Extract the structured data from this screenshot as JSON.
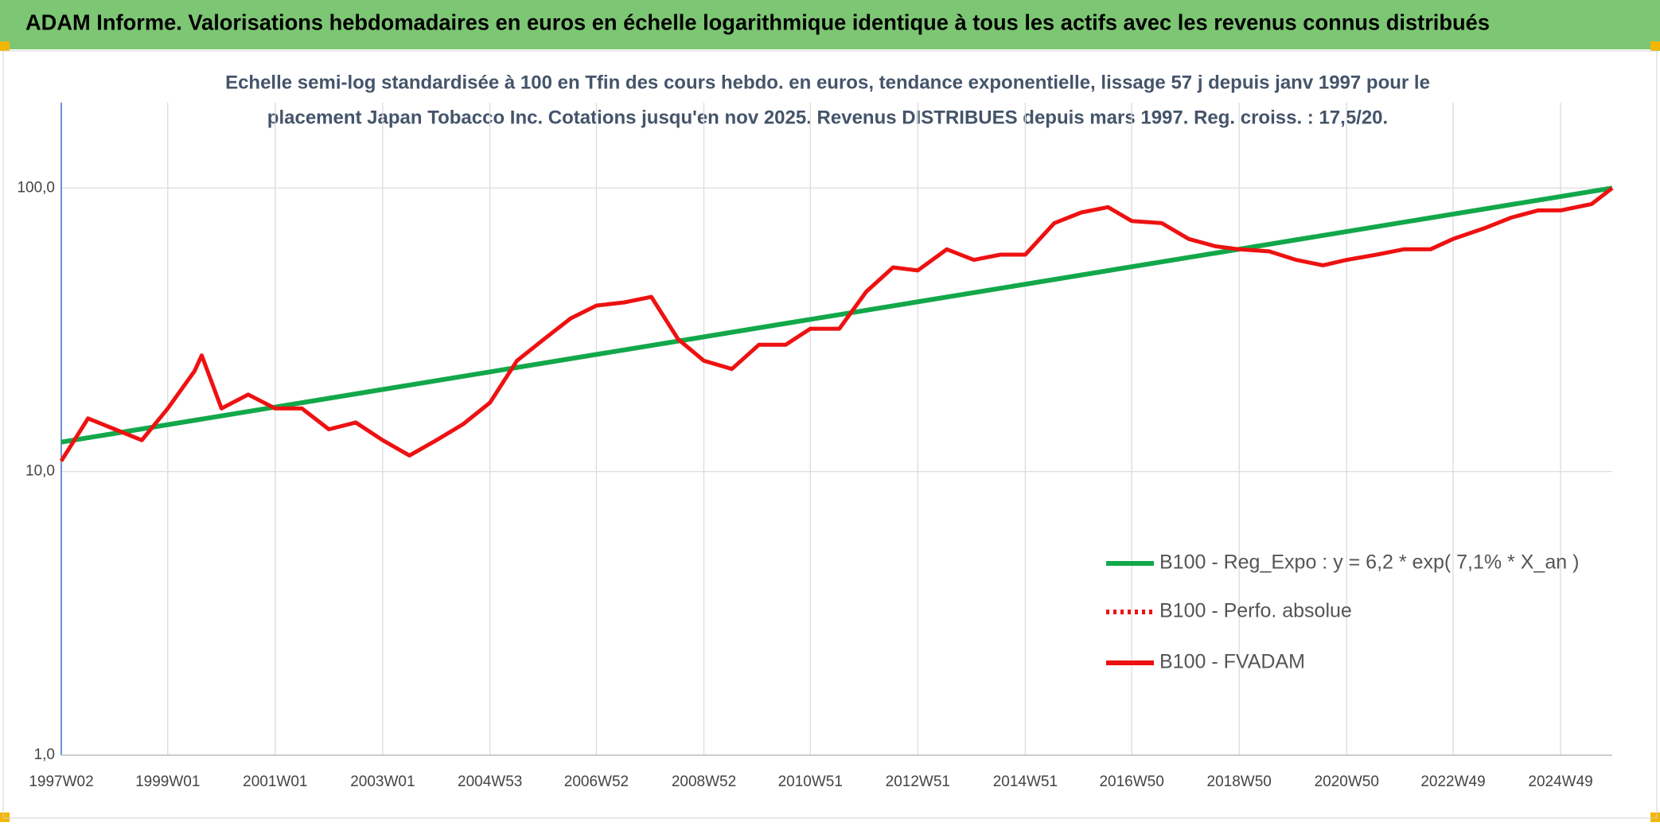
{
  "header": {
    "title": "ADAM Informe. Valorisations hebdomadaires en euros en échelle logarithmique identique à tous les actifs avec les revenus connus distribués"
  },
  "chart_data": {
    "type": "line",
    "subtitle": [
      "Echelle semi-log standardisée à 100 en Tfin des cours hebdo. en euros, tendance exponentielle, lissage 57 j depuis janv 1997 pour le",
      "placement Japan Tobacco Inc. Cotations jusqu'en nov 2025. Revenus DISTRIBUES depuis mars 1997. Reg. croiss. : 17,5/20."
    ],
    "log_scale": true,
    "grid": true,
    "legend": "bottom-right",
    "ylim": [
      1,
      200
    ],
    "yticks": [
      {
        "value": 1,
        "label": "1,0"
      },
      {
        "value": 10,
        "label": "10,0"
      },
      {
        "value": 100,
        "label": "100,0"
      }
    ],
    "xticks": [
      "1997W02",
      "1999W01",
      "2001W01",
      "2003W01",
      "2004W53",
      "2006W52",
      "2008W52",
      "2010W51",
      "2012W51",
      "2014W51",
      "2016W50",
      "2018W50",
      "2020W50",
      "2022W49",
      "2024W49"
    ],
    "series": [
      {
        "name": "B100 - Reg_Expo : y = 6,2 * exp( 7,1% *  X_an )",
        "color": "#12a84a",
        "style": "solid",
        "x": [
          "1997W02",
          "2025W47"
        ],
        "values": [
          12.7,
          100
        ]
      },
      {
        "name": "B100 - Perfo. absolue",
        "color": "#ee1111",
        "style": "dotted",
        "x": [],
        "values": []
      },
      {
        "name": "B100 - FVADAM",
        "color": "#ee1111",
        "style": "solid",
        "x": [
          "1997W02",
          "1997W28",
          "1998W02",
          "1998W28",
          "1999W01",
          "1999W27",
          "1999W34",
          "2000W01",
          "2000W27",
          "2001W01",
          "2001W27",
          "2002W01",
          "2002W27",
          "2003W01",
          "2003W27",
          "2004W01",
          "2004W27",
          "2004W53",
          "2005W27",
          "2006W01",
          "2006W27",
          "2006W52",
          "2007W27",
          "2008W01",
          "2008W27",
          "2008W52",
          "2009W27",
          "2010W01",
          "2010W27",
          "2010W51",
          "2011W27",
          "2012W01",
          "2012W27",
          "2012W51",
          "2013W27",
          "2014W01",
          "2014W27",
          "2014W51",
          "2015W27",
          "2016W01",
          "2016W27",
          "2016W50",
          "2017W27",
          "2018W01",
          "2018W27",
          "2018W50",
          "2019W27",
          "2020W01",
          "2020W27",
          "2020W50",
          "2021W27",
          "2022W01",
          "2022W27",
          "2022W49",
          "2023W27",
          "2024W01",
          "2024W27",
          "2024W49",
          "2025W27",
          "2025W47"
        ],
        "values": [
          10.9,
          15.4,
          14.1,
          12.9,
          16.7,
          22.6,
          25.7,
          16.7,
          18.7,
          16.7,
          16.7,
          14.1,
          14.9,
          12.9,
          11.4,
          12.9,
          14.7,
          17.5,
          24.6,
          29.3,
          34.7,
          38.5,
          39.5,
          41.3,
          29.3,
          24.6,
          23.0,
          28.0,
          28.0,
          31.9,
          31.9,
          43.1,
          52.5,
          51.2,
          60.8,
          55.8,
          58.2,
          58.2,
          75.2,
          82.0,
          85.6,
          76.5,
          75.2,
          66.1,
          62.3,
          60.8,
          59.8,
          55.8,
          53.4,
          55.8,
          58.2,
          60.8,
          60.8,
          66.1,
          72.1,
          78.6,
          83.4,
          83.4,
          87.8,
          100
        ]
      }
    ]
  }
}
